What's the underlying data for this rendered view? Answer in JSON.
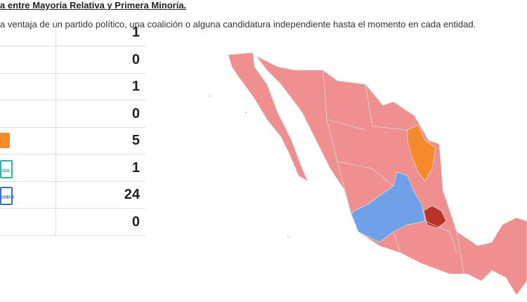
{
  "header": {
    "title": "a entre Mayoría Relativa y Primera Minoría.",
    "subtitle": "a ventaja de un partido político, una coalición o alguna candidatura independiente hasta el momento en cada entidad."
  },
  "table": {
    "rows": [
      {
        "value": "1"
      },
      {
        "value": "0"
      },
      {
        "value": "1"
      },
      {
        "value": "0"
      },
      {
        "value": "5"
      },
      {
        "value": "1",
        "logo_text": "nza"
      },
      {
        "value": "24",
        "logo_text": "entro"
      },
      {
        "value": "0"
      }
    ]
  }
}
